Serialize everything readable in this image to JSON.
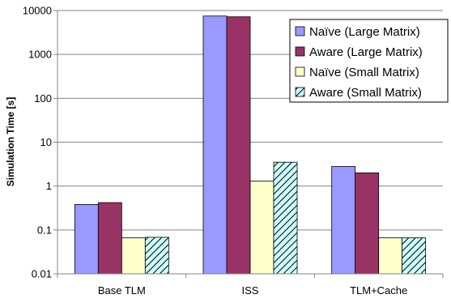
{
  "chart_data": {
    "type": "bar",
    "yscale": "log",
    "ylabel": "Simulation Time [s]",
    "xlabel": "",
    "ylim": [
      0.01,
      10000
    ],
    "yticks": [
      "0.01",
      "0.1",
      "1",
      "10",
      "100",
      "1000",
      "10000"
    ],
    "grid": true,
    "legend_position": "top-right",
    "categories": [
      "Base TLM",
      "ISS",
      "TLM+Cache"
    ],
    "series": [
      {
        "name": "Naïve (Large Matrix)",
        "color": "#9999ff",
        "pattern": "solid",
        "values": [
          0.38,
          7500,
          2.8
        ]
      },
      {
        "name": "Aware (Large Matrix)",
        "color": "#993366",
        "pattern": "solid",
        "values": [
          0.42,
          7200,
          2.0
        ]
      },
      {
        "name": "Naïve (Small Matrix)",
        "color": "#ffffcc",
        "pattern": "solid",
        "values": [
          0.066,
          1.3,
          0.066
        ]
      },
      {
        "name": "Aware (Small Matrix)",
        "color": "#ccffff",
        "pattern": "diagonal-hatch",
        "values": [
          0.068,
          3.5,
          0.066
        ]
      }
    ]
  }
}
